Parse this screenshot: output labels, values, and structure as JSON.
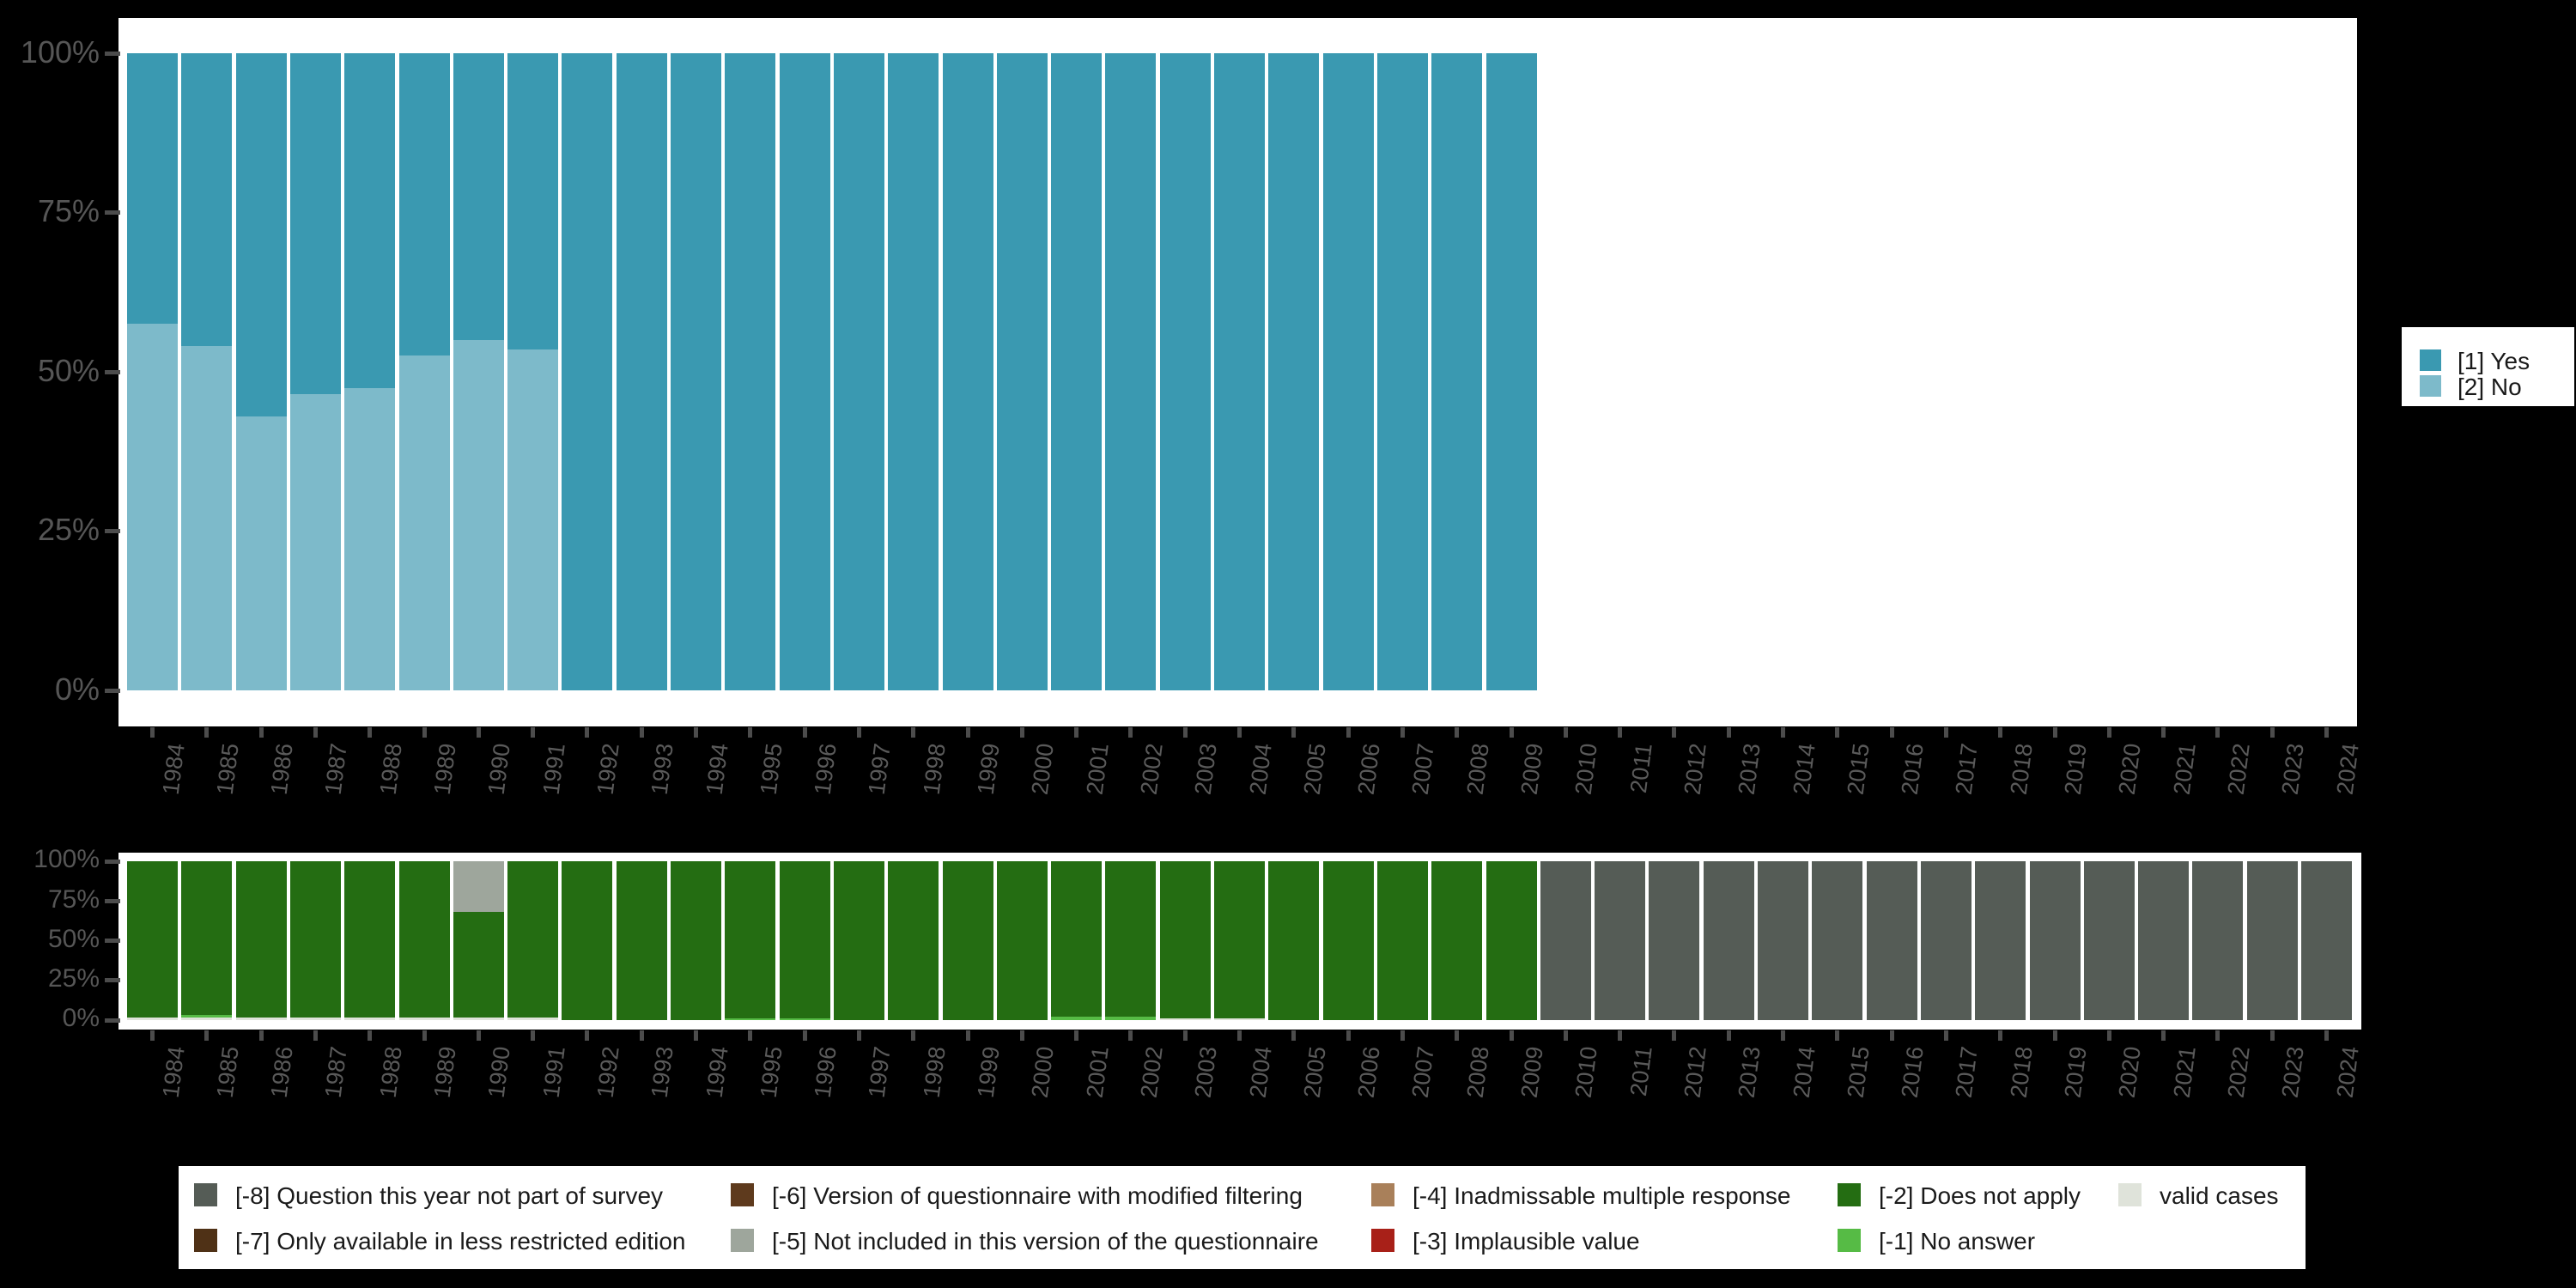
{
  "axes": {
    "x_years": [
      "1984",
      "1985",
      "1986",
      "1987",
      "1988",
      "1989",
      "1990",
      "1991",
      "1992",
      "1993",
      "1994",
      "1995",
      "1996",
      "1997",
      "1998",
      "1999",
      "2000",
      "2001",
      "2002",
      "2003",
      "2004",
      "2005",
      "2006",
      "2007",
      "2008",
      "2009",
      "2010",
      "2011",
      "2012",
      "2013",
      "2014",
      "2015",
      "2016",
      "2017",
      "2018",
      "2019",
      "2020",
      "2021",
      "2022",
      "2023",
      "2024"
    ],
    "y_tick_labels": [
      "100%",
      "75%",
      "50%",
      "25%",
      "0%"
    ]
  },
  "top_legend": {
    "entries": [
      {
        "label": "[1] Yes",
        "color": "#3a99b1"
      },
      {
        "label": "[2] No",
        "color": "#7dbaca"
      }
    ]
  },
  "bottom_legend": {
    "entries": [
      {
        "label": "[-8] Question this year not part of survey",
        "color": "#555c56"
      },
      {
        "label": "[-7] Only available in less restricted edition",
        "color": "#4f3116"
      },
      {
        "label": "[-6] Version of questionnaire with modified filtering",
        "color": "#5e3a1d"
      },
      {
        "label": "[-5] Not included in this version of the questionnaire",
        "color": "#9ea69c"
      },
      {
        "label": "[-4] Inadmissable multiple response",
        "color": "#a9805a"
      },
      {
        "label": "[-3] Implausible value",
        "color": "#a82018"
      },
      {
        "label": "[-2] Does not apply",
        "color": "#246d12"
      },
      {
        "label": "[-1] No answer",
        "color": "#56bb45"
      },
      {
        "label": "valid cases",
        "color": "#dfe3da"
      }
    ]
  },
  "chart_data": [
    {
      "type": "bar",
      "stacked": true,
      "title": "",
      "xlabel": "",
      "ylabel": "",
      "ylim": [
        0,
        100
      ],
      "yticks": [
        "100%",
        "75%",
        "50%",
        "25%",
        "0%"
      ],
      "grid": false,
      "legend_position": "right",
      "categories": [
        "1984",
        "1985",
        "1986",
        "1987",
        "1988",
        "1989",
        "1990",
        "1991",
        "1992",
        "1993",
        "1994",
        "1995",
        "1996",
        "1997",
        "1998",
        "1999",
        "2000",
        "2001",
        "2002",
        "2003",
        "2004",
        "2005",
        "2006",
        "2007",
        "2008",
        "2009",
        "2010",
        "2011",
        "2012",
        "2013",
        "2014",
        "2015",
        "2016",
        "2017",
        "2018",
        "2019",
        "2020",
        "2021",
        "2022",
        "2023",
        "2024"
      ],
      "series": [
        {
          "name": "[1] Yes",
          "color": "#3a99b1",
          "values": [
            42.5,
            46,
            57,
            53.5,
            52.5,
            47.5,
            45,
            46.5,
            100,
            100,
            100,
            100,
            100,
            100,
            100,
            100,
            100,
            100,
            100,
            100,
            100,
            100,
            100,
            100,
            100,
            100,
            0,
            0,
            0,
            0,
            0,
            0,
            0,
            0,
            0,
            0,
            0,
            0,
            0,
            0,
            0
          ]
        },
        {
          "name": "[2] No",
          "color": "#7dbaca",
          "values": [
            57.5,
            54,
            43,
            46.5,
            47.5,
            52.5,
            55,
            53.5,
            0,
            0,
            0,
            0,
            0,
            0,
            0,
            0,
            0,
            0,
            0,
            0,
            0,
            0,
            0,
            0,
            0,
            0,
            0,
            0,
            0,
            0,
            0,
            0,
            0,
            0,
            0,
            0,
            0,
            0,
            0,
            0,
            0
          ]
        }
      ]
    },
    {
      "type": "bar",
      "stacked": true,
      "title": "",
      "xlabel": "",
      "ylabel": "",
      "ylim": [
        0,
        100
      ],
      "yticks": [
        "100%",
        "75%",
        "50%",
        "25%",
        "0%"
      ],
      "grid": false,
      "legend_position": "bottom",
      "categories": [
        "1984",
        "1985",
        "1986",
        "1987",
        "1988",
        "1989",
        "1990",
        "1991",
        "1992",
        "1993",
        "1994",
        "1995",
        "1996",
        "1997",
        "1998",
        "1999",
        "2000",
        "2001",
        "2002",
        "2003",
        "2004",
        "2005",
        "2006",
        "2007",
        "2008",
        "2009",
        "2010",
        "2011",
        "2012",
        "2013",
        "2014",
        "2015",
        "2016",
        "2017",
        "2018",
        "2019",
        "2020",
        "2021",
        "2022",
        "2023",
        "2024"
      ],
      "series": [
        {
          "name": "[-8] Question this year not part of survey",
          "color": "#555c56",
          "values": [
            0,
            0,
            0,
            0,
            0,
            0,
            0,
            0,
            0,
            0,
            0,
            0,
            0,
            0,
            0,
            0,
            0,
            0,
            0,
            0,
            0,
            0,
            0,
            0,
            0,
            0,
            100,
            100,
            100,
            100,
            100,
            100,
            100,
            100,
            100,
            100,
            100,
            100,
            100,
            100,
            100
          ]
        },
        {
          "name": "[-7] Only available in less restricted edition",
          "color": "#4f3116",
          "values": [
            0,
            0,
            0,
            0,
            0,
            0,
            0,
            0,
            0,
            0,
            0,
            0,
            0,
            0,
            0,
            0,
            0,
            0,
            0,
            0,
            0,
            0,
            0,
            0,
            0,
            0,
            0,
            0,
            0,
            0,
            0,
            0,
            0,
            0,
            0,
            0,
            0,
            0,
            0,
            0,
            0
          ]
        },
        {
          "name": "[-6] Version of questionnaire with modified filtering",
          "color": "#5e3a1d",
          "values": [
            0,
            0,
            0,
            0,
            0,
            0,
            0,
            0,
            0,
            0,
            0,
            0,
            0,
            0,
            0,
            0,
            0,
            0,
            0,
            0,
            0,
            0,
            0,
            0,
            0,
            0,
            0,
            0,
            0,
            0,
            0,
            0,
            0,
            0,
            0,
            0,
            0,
            0,
            0,
            0,
            0
          ]
        },
        {
          "name": "[-5] Not included in this version of the questionnaire",
          "color": "#9ea69c",
          "values": [
            0,
            0,
            0,
            0,
            0,
            0,
            32,
            0,
            0,
            0,
            0,
            0,
            0,
            0,
            0,
            0,
            0,
            0,
            0,
            0,
            0,
            0,
            0,
            0,
            0,
            0,
            0,
            0,
            0,
            0,
            0,
            0,
            0,
            0,
            0,
            0,
            0,
            0,
            0,
            0,
            0
          ]
        },
        {
          "name": "[-4] Inadmissable multiple response",
          "color": "#a9805a",
          "values": [
            0,
            0,
            0,
            0,
            0,
            0,
            0,
            0,
            0,
            0,
            0,
            0,
            0,
            0,
            0,
            0,
            0,
            0,
            0,
            0,
            0,
            0,
            0,
            0,
            0,
            0,
            0,
            0,
            0,
            0,
            0,
            0,
            0,
            0,
            0,
            0,
            0,
            0,
            0,
            0,
            0
          ]
        },
        {
          "name": "[-3] Implausible value",
          "color": "#a82018",
          "values": [
            0,
            0,
            0,
            0,
            0,
            0,
            0,
            0,
            0,
            0,
            0,
            0,
            0,
            0,
            0,
            0,
            0,
            0,
            0,
            0,
            0,
            0,
            0,
            0,
            0,
            0,
            0,
            0,
            0,
            0,
            0,
            0,
            0,
            0,
            0,
            0,
            0,
            0,
            0,
            0,
            0
          ]
        },
        {
          "name": "[-2] Does not apply",
          "color": "#246d12",
          "values": [
            98.5,
            96.9,
            98.5,
            98.5,
            98.3,
            98.2,
            66.5,
            98.5,
            100,
            100,
            100,
            99,
            99,
            100,
            100,
            100,
            100,
            98,
            98,
            99,
            99,
            100,
            100,
            100,
            100,
            100,
            0,
            0,
            0,
            0,
            0,
            0,
            0,
            0,
            0,
            0,
            0,
            0,
            0,
            0,
            0
          ]
        },
        {
          "name": "[-1] No answer",
          "color": "#56bb45",
          "values": [
            0,
            1.5,
            0,
            0,
            0,
            0,
            0,
            0,
            0,
            0,
            0,
            1,
            1,
            0,
            0,
            0,
            0,
            2,
            2,
            0,
            0,
            0,
            0,
            0,
            0,
            0,
            0,
            0,
            0,
            0,
            0,
            0,
            0,
            0,
            0,
            0,
            0,
            0,
            0,
            0,
            0
          ]
        },
        {
          "name": "valid cases",
          "color": "#dfe3da",
          "values": [
            1.5,
            1.6,
            1.5,
            1.5,
            1.7,
            1.8,
            1.5,
            1.5,
            0,
            0,
            0,
            0,
            0,
            0,
            0,
            0,
            0,
            0,
            0,
            1,
            1,
            0,
            0,
            0,
            0,
            0,
            0,
            0,
            0,
            0,
            0,
            0,
            0,
            0,
            0,
            0,
            0,
            0,
            0,
            0,
            0
          ]
        }
      ]
    }
  ]
}
